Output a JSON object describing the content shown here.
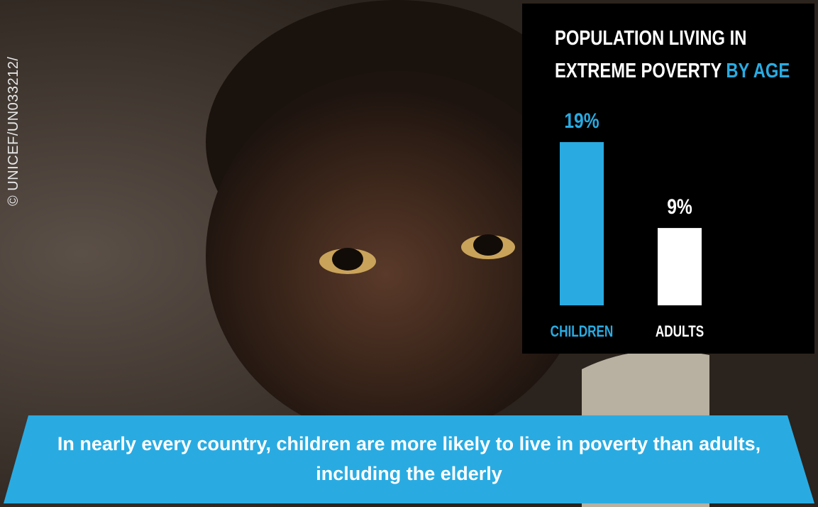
{
  "chart_data": {
    "type": "bar",
    "title": "POPULATION LIVING IN EXTREME POVERTY",
    "title_highlight": "BY AGE",
    "categories": [
      "CHILDREN",
      "ADULTS"
    ],
    "values": [
      19,
      9
    ],
    "value_labels": [
      "19%",
      "9%"
    ],
    "colors": [
      "#29abe2",
      "#ffffff"
    ]
  },
  "credit": "© UNICEF/UN033212/",
  "caption": "In nearly every country, children are more likely to live in poverty than adults, including the elderly"
}
